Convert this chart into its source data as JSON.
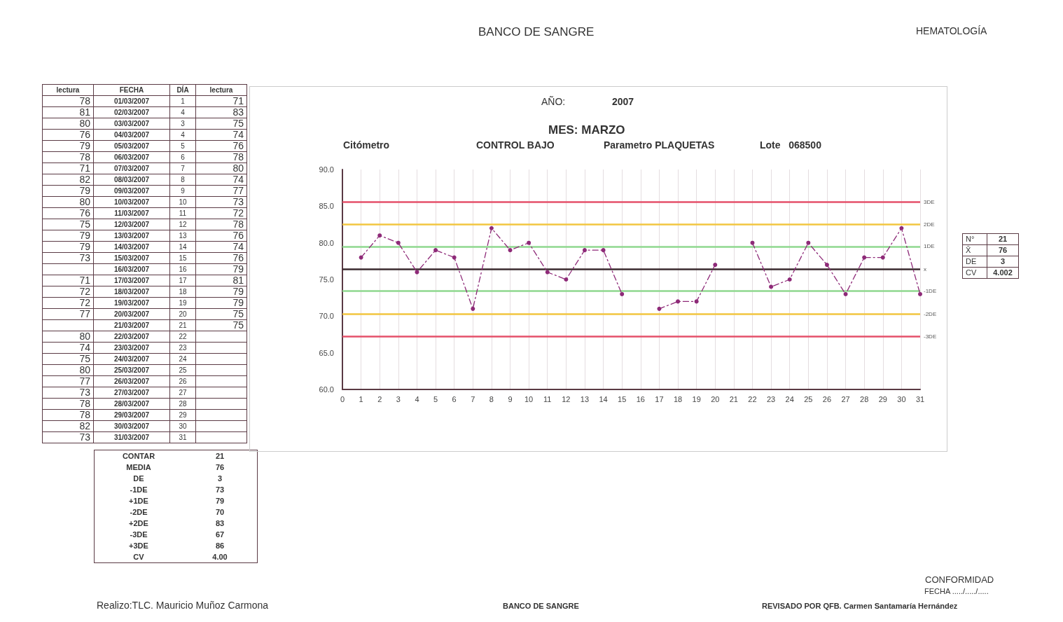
{
  "chart_data": [
    {
      "type": "other",
      "data_labels": true,
      "xlabel": "FECHA",
      "categories": [
        "01/03/2007",
        "02/03/2007",
        "03/03/2007",
        "04/03/2007",
        "05/03/2007",
        "06/03/2007",
        "07/03/2007",
        "08/03/2007",
        "09/03/2007",
        "10/03/2007",
        "11/03/2007",
        "12/03/2007",
        "13/03/2007",
        "14/03/2007",
        "15/03/2007",
        "16/03/2007",
        "17/03/2007",
        "18/03/2007",
        "19/03/2007",
        "20/03/2007",
        "21/03/2007",
        "22/03/2007",
        "23/03/2007",
        "24/03/2007",
        "25/03/2007",
        "26/03/2007",
        "27/03/2007",
        "28/03/2007",
        "29/03/2007",
        "30/03/2007",
        "31/03/2007"
      ],
      "series": [
        {
          "name": "lectura",
          "values": [
            78,
            81,
            80,
            76,
            79,
            78,
            71,
            82,
            79,
            80,
            76,
            75,
            79,
            79,
            73,
            null,
            71,
            72,
            72,
            77,
            null,
            80,
            74,
            75,
            80,
            77,
            73,
            78,
            78,
            82,
            73
          ]
        },
        {
          "name": "DÍA",
          "values": [
            1,
            4,
            3,
            4,
            5,
            6,
            7,
            8,
            9,
            10,
            11,
            12,
            13,
            14,
            15,
            16,
            17,
            18,
            19,
            20,
            21,
            22,
            23,
            24,
            25,
            26,
            27,
            28,
            29,
            30,
            31
          ]
        },
        {
          "name": "lectura",
          "values": [
            71,
            83,
            75,
            74,
            76,
            78,
            80,
            74,
            77,
            73,
            72,
            78,
            76,
            74,
            76,
            79,
            81,
            79,
            79,
            75,
            75,
            null,
            null,
            null,
            null,
            null,
            null,
            null,
            null,
            null,
            null
          ]
        }
      ]
    },
    {
      "type": "other",
      "data_labels": true,
      "categories": [
        "CONTAR",
        "MEDIA",
        "DE",
        "-1DE",
        "+1DE",
        "-2DE",
        "+2DE",
        "-3DE",
        "+3DE",
        "CV"
      ],
      "values": [
        21,
        76,
        3,
        73,
        79,
        70,
        83,
        67,
        86,
        4
      ],
      "value_labels": [
        "21",
        "76",
        "3",
        "73",
        "79",
        "70",
        "83",
        "67",
        "86",
        "4.00"
      ]
    },
    {
      "type": "line",
      "title": "BANCO DE SANGRE",
      "subtitle": "MES: MARZO",
      "annotations": [
        "HEMATOLOGÍA",
        "AÑO:",
        "2007",
        "Citómetro",
        "CONTROL BAJO",
        "Parametro PLAQUETAS",
        "Lote   068500",
        "Realizo:TLC. Mauricio Muñoz Carmona",
        "BANCO DE SANGRE",
        "CONFORMIDAD",
        "FECHA ...../...../.....",
        "REVISADO POR QFB. Carmen Santamaría Hernández"
      ],
      "x": [
        1,
        2,
        3,
        4,
        5,
        6,
        7,
        8,
        9,
        10,
        11,
        12,
        13,
        14,
        15,
        16,
        17,
        18,
        19,
        20,
        21,
        22,
        23,
        24,
        25,
        26,
        27,
        28,
        29,
        30,
        31
      ],
      "series": [
        {
          "color": "#8e2a78",
          "values": [
            78,
            81,
            80,
            76,
            79,
            78,
            71,
            82,
            79,
            80,
            76,
            75,
            79,
            79,
            73,
            null,
            71,
            72,
            72,
            77,
            null,
            80,
            74,
            75,
            80,
            77,
            73,
            78,
            78,
            82,
            73
          ]
        }
      ],
      "xlim": [
        0,
        31
      ],
      "xticks": [
        0,
        1,
        2,
        3,
        4,
        5,
        6,
        7,
        8,
        9,
        10,
        11,
        12,
        13,
        14,
        15,
        16,
        17,
        18,
        19,
        20,
        21,
        22,
        23,
        24,
        25,
        26,
        27,
        28,
        29,
        30,
        31
      ],
      "ylim": [
        60,
        90
      ],
      "yticks": [
        {
          "value": 60,
          "label": "60.0"
        },
        {
          "value": 65,
          "label": "65.0"
        },
        {
          "value": 70,
          "label": "70.0"
        },
        {
          "value": 75,
          "label": "75.0"
        },
        {
          "value": 80,
          "label": "80.0"
        },
        {
          "value": 85,
          "label": "85.0"
        },
        {
          "value": 90,
          "label": "90.0"
        }
      ],
      "ref_lines": [
        {
          "axis": "y",
          "value": 85.6,
          "label": "3DE",
          "color": "#e5506a"
        },
        {
          "axis": "y",
          "value": 82.5,
          "label": "2DE",
          "color": "#f2c640"
        },
        {
          "axis": "y",
          "value": 79.5,
          "label": "1DE",
          "color": "#8fd88f"
        },
        {
          "axis": "y",
          "value": 76.4,
          "label": "x",
          "color": "#3a2a2e"
        },
        {
          "axis": "y",
          "value": 73.4,
          "label": "-1DE",
          "color": "#8fd88f"
        },
        {
          "axis": "y",
          "value": 70.3,
          "label": "-2DE",
          "color": "#f2c640"
        },
        {
          "axis": "y",
          "value": 67.2,
          "label": "-3DE",
          "color": "#e5506a"
        }
      ],
      "grid": "x",
      "marker": "circle",
      "line_style": "dashed"
    },
    {
      "type": "other",
      "data_labels": true,
      "categories": [
        "N°",
        "X̄",
        "DE",
        "CV"
      ],
      "values": [
        21,
        76,
        3,
        4.002
      ]
    }
  ]
}
